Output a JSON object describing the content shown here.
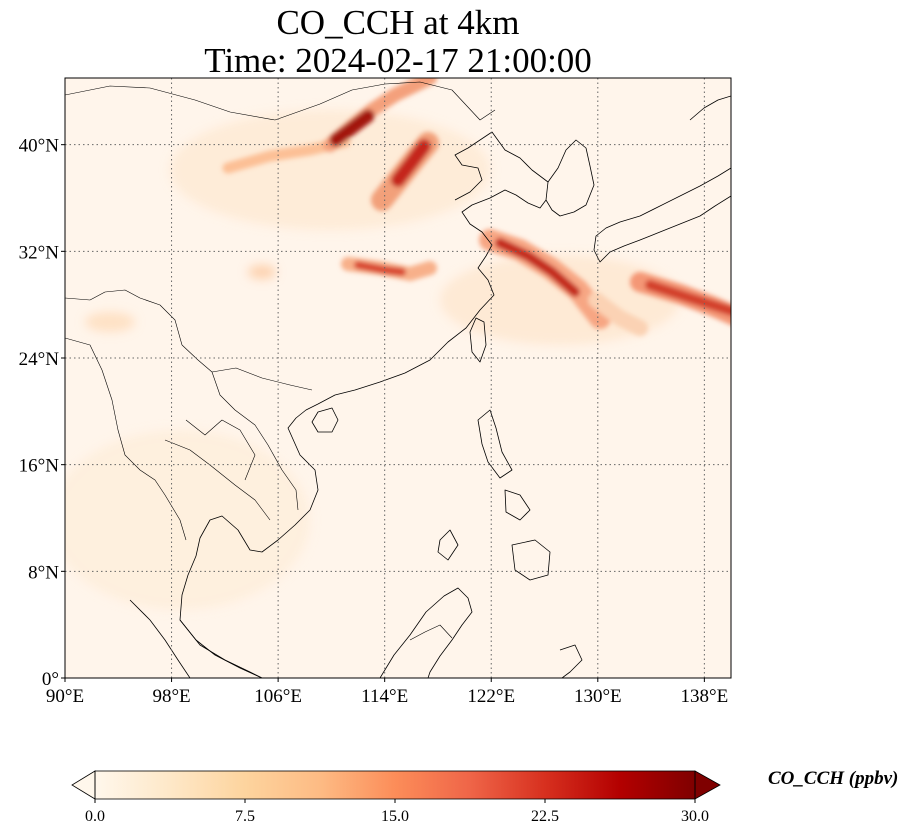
{
  "figure": {
    "title_line1": "CO_CCH at 4km",
    "title_line2": "Time: 2024-02-17 21:00:00"
  },
  "map": {
    "lon_range": [
      90,
      140
    ],
    "lat_range": [
      0,
      45
    ],
    "lon_ticks": [
      {
        "value": 90,
        "label": "90°E"
      },
      {
        "value": 98,
        "label": "98°E"
      },
      {
        "value": 106,
        "label": "106°E"
      },
      {
        "value": 114,
        "label": "114°E"
      },
      {
        "value": 122,
        "label": "122°E"
      },
      {
        "value": 130,
        "label": "130°E"
      },
      {
        "value": 138,
        "label": "138°E"
      }
    ],
    "lat_ticks": [
      {
        "value": 0,
        "label": "0°"
      },
      {
        "value": 8,
        "label": "8°N"
      },
      {
        "value": 16,
        "label": "16°N"
      },
      {
        "value": 24,
        "label": "24°N"
      },
      {
        "value": 32,
        "label": "32°N"
      },
      {
        "value": 40,
        "label": "40°N"
      }
    ],
    "gridlines": true,
    "background_color": "#fff5eb",
    "plumes": [
      {
        "name": "plume-north-china-west",
        "lon": [
          101.5,
          112.0
        ],
        "lat": [
          38.5,
          40.5
        ],
        "value": 12
      },
      {
        "name": "plume-north-china-core",
        "lon": [
          109.5,
          113.0
        ],
        "lat": [
          39.0,
          44.0
        ],
        "value": 28
      },
      {
        "name": "plume-north-china-east",
        "lon": [
          114.5,
          117.5
        ],
        "lat": [
          37.0,
          40.0
        ],
        "value": 27
      },
      {
        "name": "plume-central-china",
        "lon": [
          112.0,
          118.0
        ],
        "lat": [
          30.0,
          31.5
        ],
        "value": 18
      },
      {
        "name": "plume-east-china-sea",
        "lon": [
          120.0,
          129.0
        ],
        "lat": [
          27.5,
          33.0
        ],
        "value": 22
      },
      {
        "name": "plume-south-of-japan",
        "lon": [
          133.0,
          140.0
        ],
        "lat": [
          27.5,
          30.0
        ],
        "value": 22
      }
    ],
    "map_features": "coastlines, country borders"
  },
  "colorbar": {
    "label": "CO_CCH (ppbv)",
    "colormap": "OrRd",
    "colors": [
      "#fff7ec",
      "#fee8c8",
      "#fdd49e",
      "#fdbb84",
      "#fc8d59",
      "#ef6548",
      "#d7301f",
      "#b30000",
      "#7f0000"
    ],
    "vmin": 0.0,
    "vmax": 30.0,
    "extend": "both",
    "ticks": [
      {
        "value": 0.0,
        "label": "0.0"
      },
      {
        "value": 7.5,
        "label": "7.5"
      },
      {
        "value": 15.0,
        "label": "15.0"
      },
      {
        "value": 22.5,
        "label": "22.5"
      },
      {
        "value": 30.0,
        "label": "30.0"
      }
    ]
  }
}
